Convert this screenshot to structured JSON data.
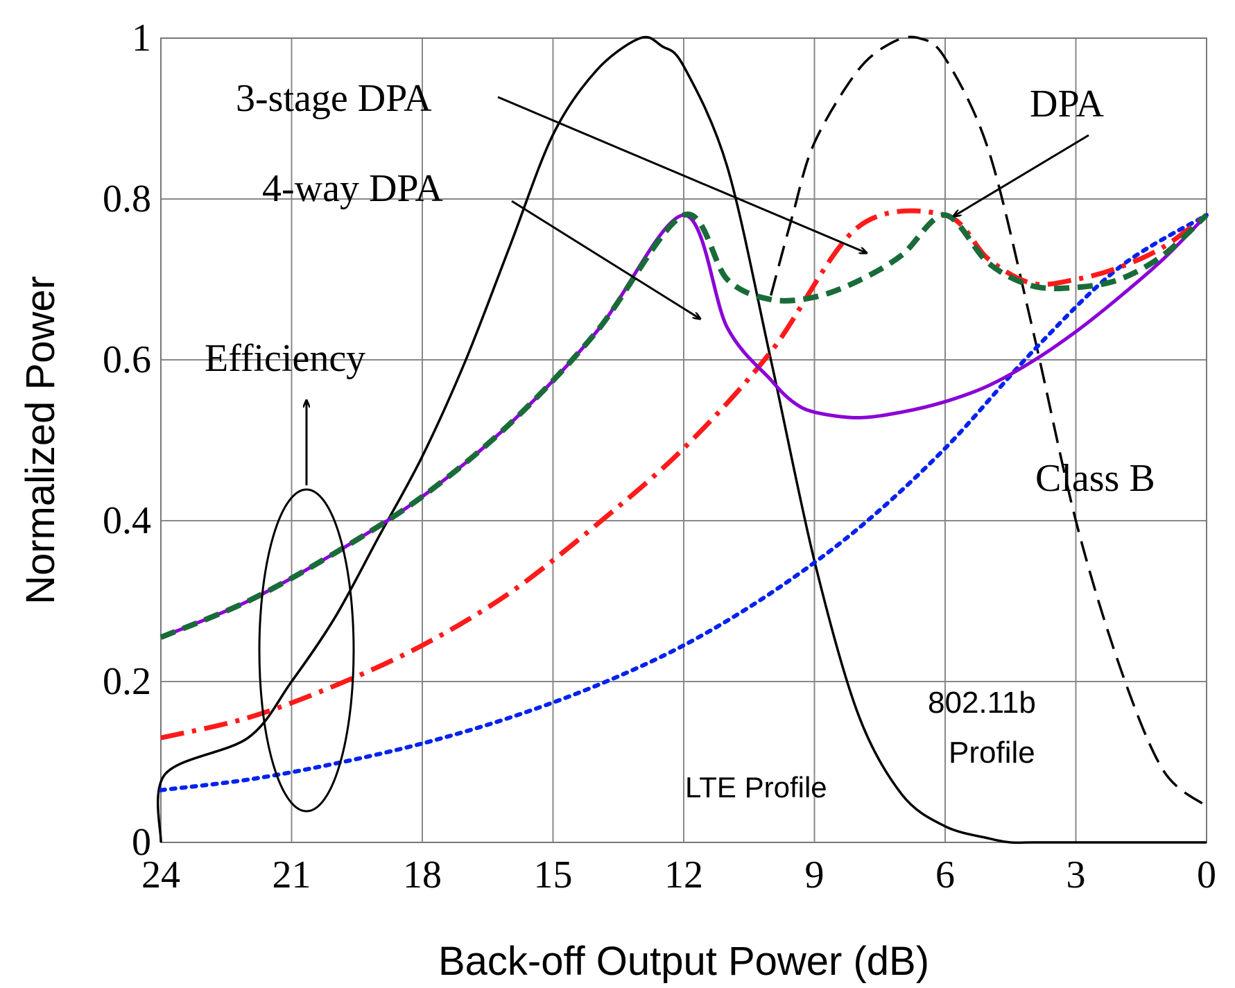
{
  "chart_data": {
    "type": "line",
    "xlabel": "Back-off Output Power (dB)",
    "ylabel": "Normalized Power",
    "xlim": [
      24,
      0
    ],
    "ylim": [
      0,
      1
    ],
    "x_ticks": [
      "24",
      "21",
      "18",
      "15",
      "12",
      "9",
      "6",
      "3",
      "0"
    ],
    "y_ticks": [
      "0",
      "0.2",
      "0.4",
      "0.6",
      "0.8",
      "1"
    ],
    "grid": true,
    "series": [
      {
        "name": "4-way DPA",
        "style": "solid",
        "color": "#8a00d6",
        "x": [
          24,
          22,
          20,
          18,
          16,
          14,
          12,
          11,
          10,
          9.5,
          9,
          8,
          7,
          6,
          5,
          4,
          3,
          2,
          1,
          0
        ],
        "y": [
          0.255,
          0.3,
          0.36,
          0.43,
          0.52,
          0.635,
          0.78,
          0.64,
          0.575,
          0.548,
          0.535,
          0.528,
          0.535,
          0.548,
          0.568,
          0.598,
          0.635,
          0.678,
          0.725,
          0.78
        ]
      },
      {
        "name": "3-stage DPA",
        "style": "dashed",
        "color": "#1a6b3a",
        "x": [
          24,
          22,
          20,
          18,
          16,
          14,
          12,
          11,
          10,
          9,
          8,
          7,
          6,
          5,
          4,
          3,
          2,
          1,
          0
        ],
        "y": [
          0.255,
          0.3,
          0.36,
          0.43,
          0.52,
          0.635,
          0.78,
          0.7,
          0.675,
          0.678,
          0.698,
          0.73,
          0.78,
          0.72,
          0.692,
          0.69,
          0.7,
          0.73,
          0.78
        ]
      },
      {
        "name": "DPA",
        "style": "dash-dot",
        "color": "#ff1a1a",
        "x": [
          24,
          22,
          20,
          18,
          16,
          14,
          12,
          10,
          8,
          6,
          5,
          4,
          3,
          2,
          1,
          0
        ],
        "y": [
          0.13,
          0.155,
          0.195,
          0.245,
          0.31,
          0.395,
          0.49,
          0.61,
          0.765,
          0.78,
          0.725,
          0.695,
          0.7,
          0.715,
          0.74,
          0.78
        ]
      },
      {
        "name": "Class B",
        "style": "dotted",
        "color": "#0022ee",
        "x": [
          24,
          22,
          20,
          18,
          16,
          14,
          12,
          10,
          8,
          6,
          4,
          2,
          0
        ],
        "y": [
          0.065,
          0.078,
          0.098,
          0.123,
          0.155,
          0.195,
          0.245,
          0.31,
          0.39,
          0.49,
          0.61,
          0.715,
          0.78
        ]
      },
      {
        "name": "LTE Profile",
        "style": "solid",
        "color": "#000000",
        "x": [
          24,
          23.9,
          22,
          21,
          20,
          19,
          18,
          17,
          16,
          15,
          14,
          13,
          12.5,
          12,
          11,
          10,
          9,
          8,
          7,
          6,
          5,
          4.5,
          4,
          3,
          2,
          1,
          0
        ],
        "y": [
          0,
          0.085,
          0.13,
          0.2,
          0.28,
          0.38,
          0.48,
          0.6,
          0.74,
          0.88,
          0.96,
          1.0,
          0.99,
          0.965,
          0.84,
          0.6,
          0.35,
          0.16,
          0.06,
          0.02,
          0.005,
          0,
          0,
          0,
          0,
          0,
          0
        ]
      },
      {
        "name": "802.11b Profile",
        "style": "dashed",
        "color": "#000000",
        "x": [
          10.0,
          9.5,
          9.0,
          8.0,
          7.2,
          6.6,
          6.0,
          5.0,
          4.0,
          3.0,
          2.0,
          1.0,
          0.0
        ],
        "y": [
          0.68,
          0.78,
          0.87,
          0.96,
          0.995,
          1.0,
          0.975,
          0.86,
          0.64,
          0.4,
          0.22,
          0.09,
          0.045
        ]
      }
    ],
    "annotations": {
      "three_stage": "3-stage DPA",
      "four_way": "4-way DPA",
      "dpa": "DPA",
      "efficiency": "Efficiency",
      "class_b": "Class B",
      "lte": "LTE Profile",
      "wifi_line1": "802.11b",
      "wifi_line2": "Profile"
    }
  }
}
